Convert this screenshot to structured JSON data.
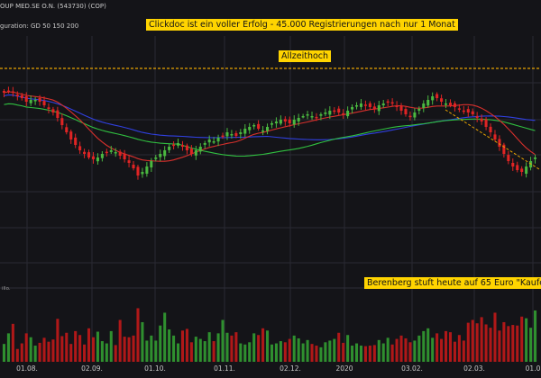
{
  "header": {
    "instrument": "OUP MED.SE O.N. (543730) (COP)",
    "configuration": "guration: GD 50 150 200"
  },
  "annotations": {
    "headline": "Clickdoc ist ein voller Erfolg - 45.000 Registrierungen nach nur 1 Monat",
    "all_time_high": "Allzeithoch",
    "analyst": "Berenberg stuft heute auf 65 Euro \"Kaufen\""
  },
  "volume_label": "illo.",
  "colors": {
    "background": "#141418",
    "grid": "#2a2a33",
    "candle_up": "#4ab840",
    "candle_down": "#e02424",
    "vol_up": "#2f8f2f",
    "vol_down": "#b01818",
    "gd50": "#d8302c",
    "gd150": "#30c040",
    "gd200": "#3040e0",
    "ath_line": "#e8a200",
    "trend_line": "#e8a200"
  },
  "chart_data": [
    {
      "type": "candlestick",
      "title": "OUP MED.SE O.N. (543730) (COP)",
      "x_tick_labels": [
        "01.08.",
        "02.09.",
        "01.10.",
        "01.11.",
        "02.12.",
        "2020",
        "03.02.",
        "02.03.",
        "01.0"
      ],
      "moving_averages": [
        "GD 50",
        "GD 150",
        "GD 200"
      ],
      "grid": true,
      "note": "Daily candlestick series; closes are relative price levels (no price axis printed).",
      "closes": [
        0.96,
        0.97,
        0.96,
        0.94,
        0.93,
        0.91,
        0.92,
        0.92,
        0.91,
        0.89,
        0.87,
        0.85,
        0.82,
        0.78,
        0.74,
        0.7,
        0.67,
        0.64,
        0.62,
        0.6,
        0.59,
        0.6,
        0.62,
        0.63,
        0.64,
        0.63,
        0.61,
        0.59,
        0.57,
        0.54,
        0.5,
        0.52,
        0.55,
        0.58,
        0.6,
        0.62,
        0.64,
        0.66,
        0.67,
        0.68,
        0.66,
        0.64,
        0.62,
        0.64,
        0.66,
        0.68,
        0.7,
        0.69,
        0.71,
        0.72,
        0.74,
        0.73,
        0.72,
        0.74,
        0.76,
        0.77,
        0.78,
        0.76,
        0.75,
        0.77,
        0.79,
        0.8,
        0.81,
        0.8,
        0.79,
        0.81,
        0.82,
        0.83,
        0.84,
        0.83,
        0.82,
        0.84,
        0.85,
        0.86,
        0.86,
        0.85,
        0.84,
        0.86,
        0.88,
        0.89,
        0.9,
        0.89,
        0.88,
        0.87,
        0.89,
        0.9,
        0.91,
        0.9,
        0.88,
        0.86,
        0.84,
        0.83,
        0.85,
        0.87,
        0.9,
        0.92,
        0.94,
        0.93,
        0.91,
        0.9,
        0.89,
        0.88,
        0.87,
        0.86,
        0.85,
        0.84,
        0.82,
        0.8,
        0.77,
        0.74,
        0.7,
        0.66,
        0.62,
        0.58,
        0.55,
        0.53,
        0.52,
        0.55,
        0.58,
        0.6
      ]
    },
    {
      "type": "bar",
      "title": "",
      "x_tick_labels": [
        "01.08.",
        "02.09.",
        "01.10.",
        "01.11.",
        "02.12.",
        "2020",
        "03.02.",
        "02.03.",
        "01.0"
      ],
      "ylabel": "illo.",
      "note": "Volume bars under the price panel, coloured like the candles; relative heights.",
      "values": [
        0.32,
        0.51,
        0.68,
        0.23,
        0.33,
        0.51,
        0.44,
        0.29,
        0.34,
        0.43,
        0.36,
        0.4,
        0.77,
        0.46,
        0.52,
        0.32,
        0.55,
        0.48,
        0.31,
        0.6,
        0.44,
        0.54,
        0.37,
        0.33,
        0.55,
        0.3,
        0.75,
        0.45,
        0.44,
        0.47,
        0.96,
        0.71,
        0.38,
        0.47,
        0.38,
        0.65,
        0.88,
        0.58,
        0.47,
        0.33,
        0.56,
        0.59,
        0.35,
        0.45,
        0.41,
        0.37,
        0.53,
        0.37,
        0.51,
        0.75,
        0.52,
        0.47,
        0.53,
        0.33,
        0.31,
        0.35,
        0.51,
        0.48,
        0.6,
        0.56,
        0.31,
        0.33,
        0.37,
        0.35,
        0.41,
        0.47,
        0.42,
        0.33,
        0.39,
        0.32,
        0.29,
        0.26,
        0.35,
        0.38,
        0.41,
        0.52,
        0.34,
        0.48,
        0.29,
        0.33,
        0.29,
        0.28,
        0.29,
        0.3,
        0.39,
        0.33,
        0.43,
        0.31,
        0.41,
        0.47,
        0.42,
        0.35,
        0.38,
        0.47,
        0.55,
        0.6,
        0.43,
        0.51,
        0.41,
        0.55,
        0.53,
        0.36,
        0.48,
        0.38,
        0.7,
        0.75,
        0.69,
        0.8,
        0.67,
        0.61,
        0.88,
        0.56,
        0.71,
        0.64,
        0.66,
        0.65,
        0.81,
        0.78,
        0.61,
        0.92
      ]
    }
  ]
}
